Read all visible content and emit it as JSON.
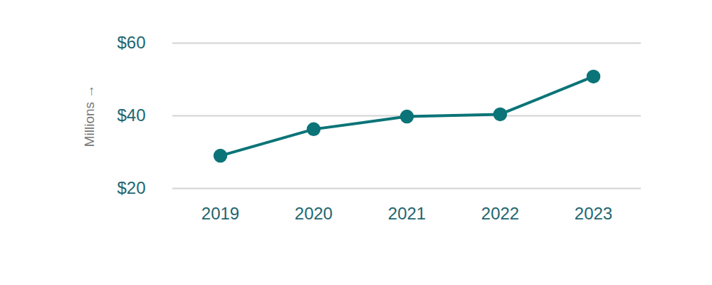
{
  "chart_data": {
    "type": "line",
    "y_label": "Millions",
    "categories": [
      "2019",
      "2020",
      "2021",
      "2022",
      "2023"
    ],
    "values": [
      29.0,
      36.3,
      39.8,
      40.4,
      50.8
    ],
    "color": "#0b7478",
    "marker": "circle",
    "ylim": [
      20,
      60
    ],
    "yticks": [
      {
        "value": 20,
        "label": "$20"
      },
      {
        "value": 40,
        "label": "$40"
      },
      {
        "value": 60,
        "label": "$60"
      }
    ],
    "grid": true
  }
}
